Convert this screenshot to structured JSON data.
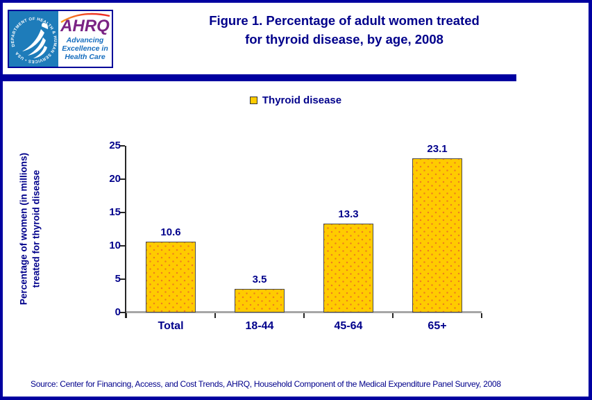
{
  "colors": {
    "navy_text": "#00008B",
    "border_navy": "#0000A0",
    "bar_fill": "#FFCB00",
    "bar_dots": "#EE7F1E",
    "axis_baseline_gray": "#A6A6A6",
    "axis_dark": "#262626",
    "hhs_panel_blue": "#1E7CBA",
    "ahrq_purple": "#7A2384",
    "tagline_blue": "#156DBE"
  },
  "header": {
    "logo": {
      "seal_text": "DEPARTMENT OF HEALTH & HUMAN SERVICES • USA",
      "org_abbrev": "AHRQ",
      "tagline_line1": "Advancing",
      "tagline_line2": "Excellence in",
      "tagline_line3": "Health Care"
    },
    "title": {
      "line1": "Figure 1. Percentage of adult women treated",
      "line2": "for thyroid disease, by age, 2008"
    }
  },
  "legend": {
    "label": "Thyroid disease",
    "swatch_color": "#FFCB00",
    "swatch_border": "#333333"
  },
  "chart_data": {
    "type": "bar",
    "categories": [
      "Total",
      "18-44",
      "45-64",
      "65+"
    ],
    "values": [
      10.6,
      3.5,
      13.3,
      23.1
    ],
    "value_labels": [
      "10.6",
      "3.5",
      "13.3",
      "23.1"
    ],
    "series_name": "Thyroid disease",
    "title": "Figure 1. Percentage of adult women treated for thyroid disease, by age, 2008",
    "xlabel": "",
    "ylabel": "Percentage of women (in millions) treated for thyroid disease",
    "ylabel_line1": "Percentage of women (in millions)",
    "ylabel_line2": "treated for thyroid disease",
    "ylim": [
      0,
      25
    ],
    "yticks": [
      0,
      5,
      10,
      15,
      20,
      25
    ],
    "grid": false,
    "legend_position": "top-center",
    "bar_color": "#FFCB00",
    "bar_dot_color": "#EE7F1E"
  },
  "footer": {
    "source": "Source: Center for Financing, Access, and Cost Trends, AHRQ, Household Component of the Medical Expenditure Panel Survey,  2008"
  }
}
